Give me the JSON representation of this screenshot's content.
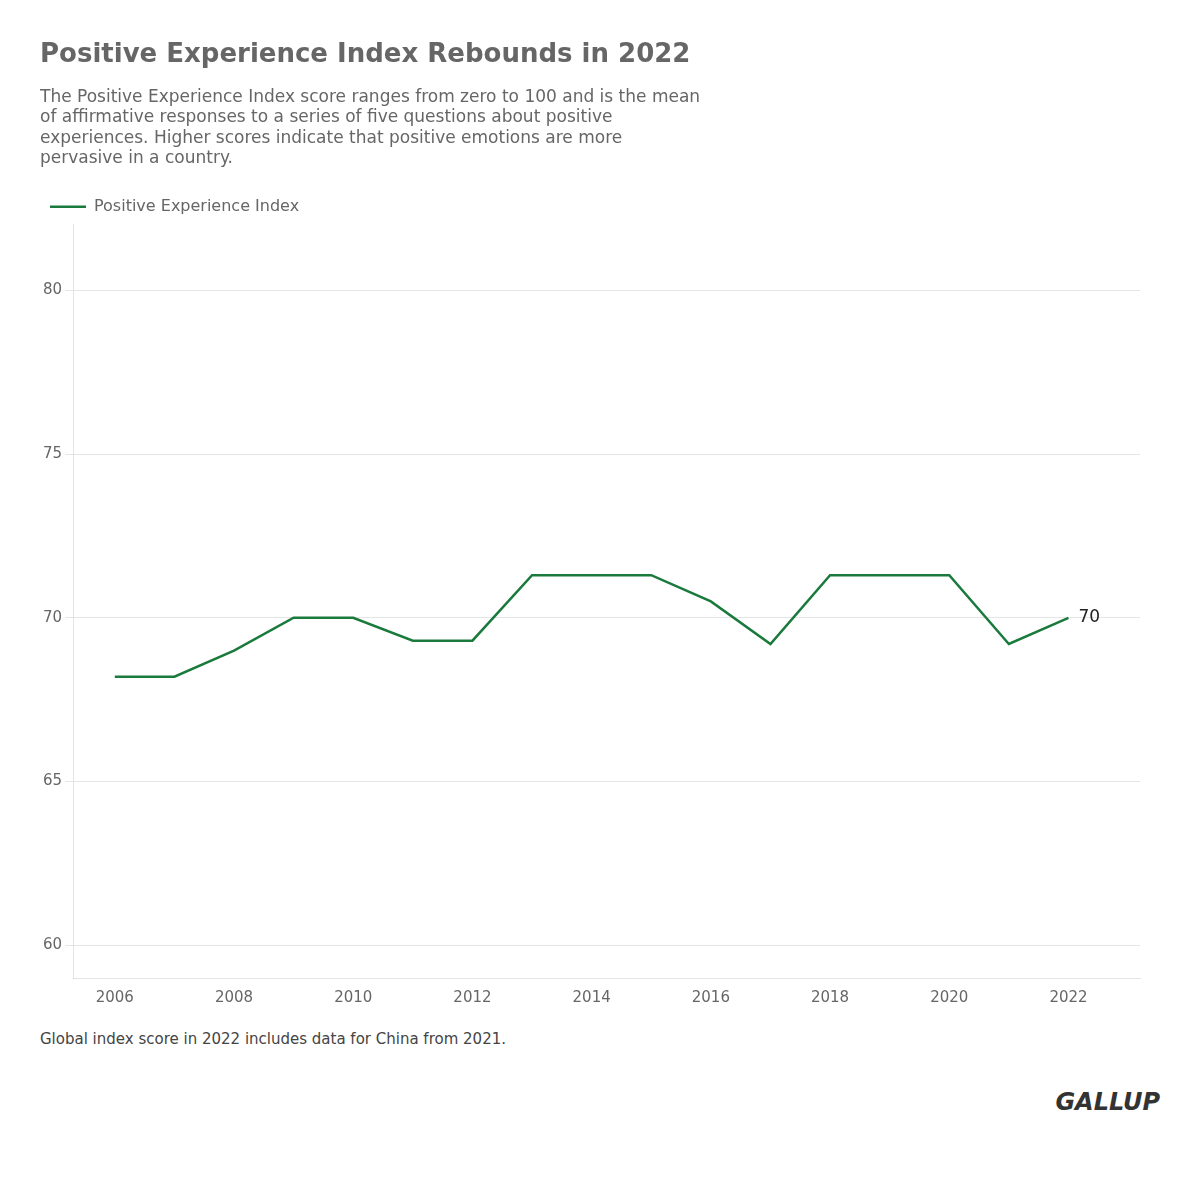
{
  "chart_data": {
    "type": "line",
    "title": "Positive Experience Index Rebounds in 2022",
    "subtitle": [
      "The Positive Experience Index score ranges from zero to 100 and is the mean",
      "of affirmative responses to a series of five questions about positive",
      "experiences. Higher scores indicate that positive emotions are more",
      "pervasive in a country."
    ],
    "x": [
      2006,
      2007,
      2008,
      2009,
      2010,
      2011,
      2012,
      2013,
      2014,
      2015,
      2016,
      2017,
      2018,
      2019,
      2020,
      2021,
      2022
    ],
    "series": [
      {
        "name": "Positive Experience Index",
        "color": "#1a7a3c",
        "values": [
          68.2,
          68.2,
          69.0,
          70.0,
          70.0,
          69.3,
          69.3,
          71.3,
          71.3,
          71.3,
          70.5,
          69.2,
          71.3,
          71.3,
          71.3,
          69.2,
          70.0
        ]
      }
    ],
    "xlim": [
      2005.3,
      2023.2
    ],
    "xticks": [
      2006,
      2008,
      2010,
      2012,
      2014,
      2016,
      2018,
      2020,
      2022
    ],
    "ylim": [
      59,
      82
    ],
    "yticks": [
      60,
      65,
      70,
      75,
      80
    ],
    "grid": "y",
    "legend": "top",
    "annotations": [
      {
        "text": "70",
        "x": 2022,
        "y": 70
      }
    ],
    "footnote": "Global index score in 2022 includes data for China from 2021.",
    "branding": "GALLUP"
  }
}
